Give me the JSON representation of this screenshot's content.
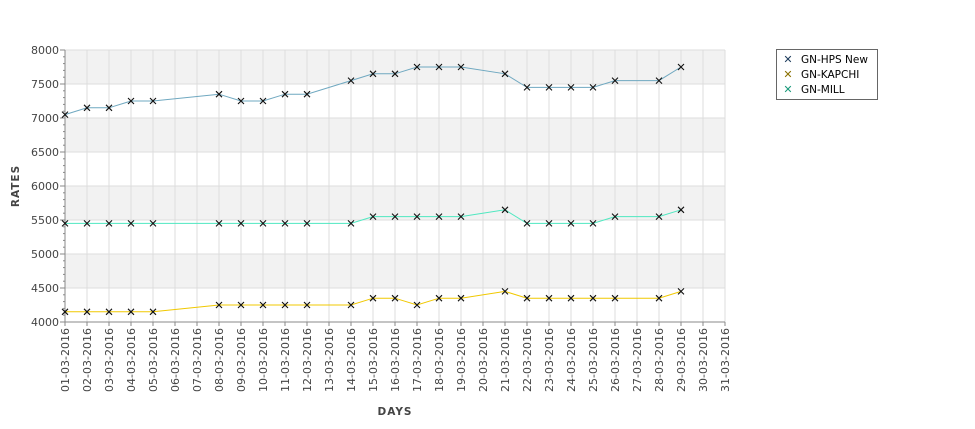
{
  "chart_data": {
    "type": "line",
    "title": "",
    "xlabel": "DAYS",
    "ylabel": "RATES",
    "ylim": [
      4000,
      8000
    ],
    "yticks": [
      "4000",
      "4500",
      "5000",
      "5500",
      "6000",
      "6500",
      "7000",
      "7500",
      "8000"
    ],
    "categories": [
      "01-03-2016",
      "02-03-2016",
      "03-03-2016",
      "04-03-2016",
      "05-03-2016",
      "06-03-2016",
      "07-03-2016",
      "08-03-2016",
      "09-03-2016",
      "10-03-2016",
      "11-03-2016",
      "12-03-2016",
      "13-03-2016",
      "14-03-2016",
      "15-03-2016",
      "16-03-2016",
      "17-03-2016",
      "18-03-2016",
      "19-03-2016",
      "20-03-2016",
      "21-03-2016",
      "22-03-2016",
      "23-03-2016",
      "24-03-2016",
      "25-03-2016",
      "26-03-2016",
      "27-03-2016",
      "28-03-2016",
      "29-03-2016",
      "30-03-2016",
      "31-03-2016"
    ],
    "legend_position": "top-right",
    "series": [
      {
        "name": "GN-HPS New",
        "color": "#6fa8c0",
        "values": [
          7050,
          7150,
          7150,
          7250,
          7250,
          null,
          null,
          7350,
          7250,
          7250,
          7350,
          7350,
          null,
          7550,
          7650,
          7650,
          7750,
          7750,
          7750,
          null,
          7650,
          7450,
          7450,
          7450,
          7450,
          7550,
          null,
          7550,
          7750,
          null,
          null
        ]
      },
      {
        "name": "GN-KAPCHI",
        "color": "#f0c800",
        "values": [
          4150,
          4150,
          4150,
          4150,
          4150,
          null,
          null,
          4250,
          4250,
          4250,
          4250,
          4250,
          null,
          4250,
          4350,
          4350,
          4250,
          4350,
          4350,
          null,
          4450,
          4350,
          4350,
          4350,
          4350,
          4350,
          null,
          4350,
          4450,
          null,
          null
        ]
      },
      {
        "name": "GN-MILL",
        "color": "#4fe8c0",
        "values": [
          5450,
          5450,
          5450,
          5450,
          5450,
          null,
          null,
          5450,
          5450,
          5450,
          5450,
          5450,
          null,
          5450,
          5550,
          5550,
          5550,
          5550,
          5550,
          null,
          5650,
          5450,
          5450,
          5450,
          5450,
          5550,
          null,
          5550,
          5650,
          null,
          null
        ]
      }
    ]
  }
}
